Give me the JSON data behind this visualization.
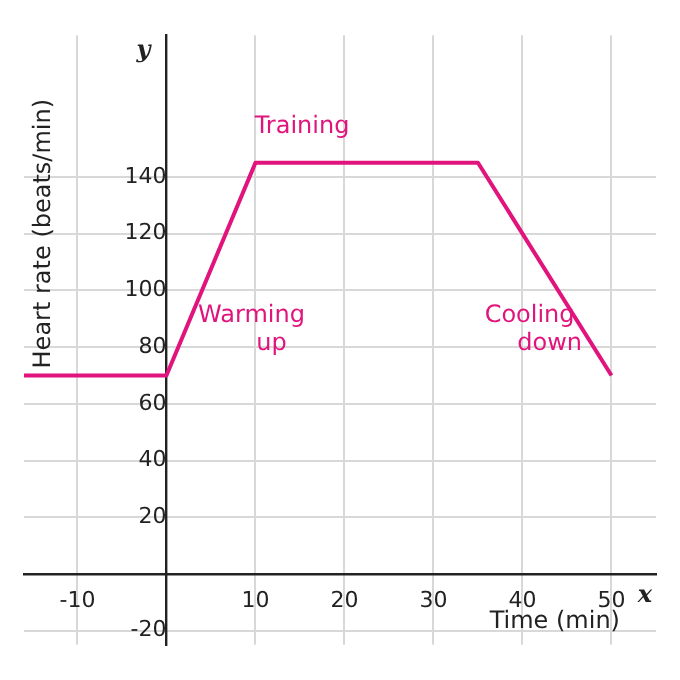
{
  "chart_data": {
    "type": "line",
    "xlabel": "Time (min)",
    "ylabel": "Heart rate (beats/min)",
    "x": [
      -16,
      0,
      10,
      35,
      50
    ],
    "series": [
      {
        "color": "#e0147c",
        "values": [
          70,
          70,
          145,
          145,
          70
        ]
      }
    ],
    "xlim": [
      -16,
      55
    ],
    "ylim": [
      -25,
      190
    ],
    "xticks": [
      -10,
      10,
      20,
      30,
      40,
      50
    ],
    "yticks": [
      -20,
      20,
      40,
      60,
      80,
      100,
      120,
      140
    ],
    "grid": true,
    "legend": false,
    "marker": "none",
    "line_style": "solid",
    "annotations": [
      "Training",
      "Warming\nup",
      "Cooling\ndown",
      "x",
      "y"
    ]
  }
}
